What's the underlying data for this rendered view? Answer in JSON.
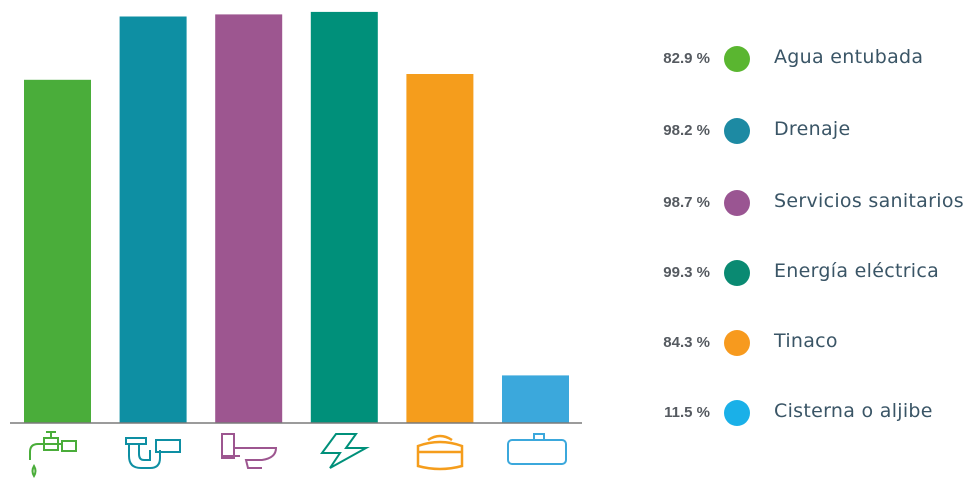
{
  "chart_data": {
    "type": "bar",
    "categories": [
      "Agua entubada",
      "Drenaje",
      "Servicios sanitarios",
      "Energía eléctrica",
      "Tinaco",
      "Cisterna o aljibe"
    ],
    "values": [
      82.9,
      98.2,
      98.7,
      99.3,
      84.3,
      11.5
    ],
    "value_labels": [
      "82.9 %",
      "98.2 %",
      "98.7 %",
      "99.3 %",
      "84.3 %",
      "11.5 %"
    ],
    "ylim": [
      0,
      100
    ],
    "colors": [
      "#4aad3a",
      "#0e8fa3",
      "#9d5690",
      "#00907a",
      "#f59d1c",
      "#3ba8dc"
    ],
    "legend_colors": [
      "#5ab630",
      "#1d8aa3",
      "#9a5592",
      "#0a8a72",
      "#f79a1e",
      "#1ab0e8"
    ],
    "icons": [
      "faucet-icon",
      "drain-pipe-icon",
      "toilet-icon",
      "lightning-icon",
      "water-tank-icon",
      "cistern-icon"
    ],
    "legend_placement": "right",
    "grid": false
  }
}
